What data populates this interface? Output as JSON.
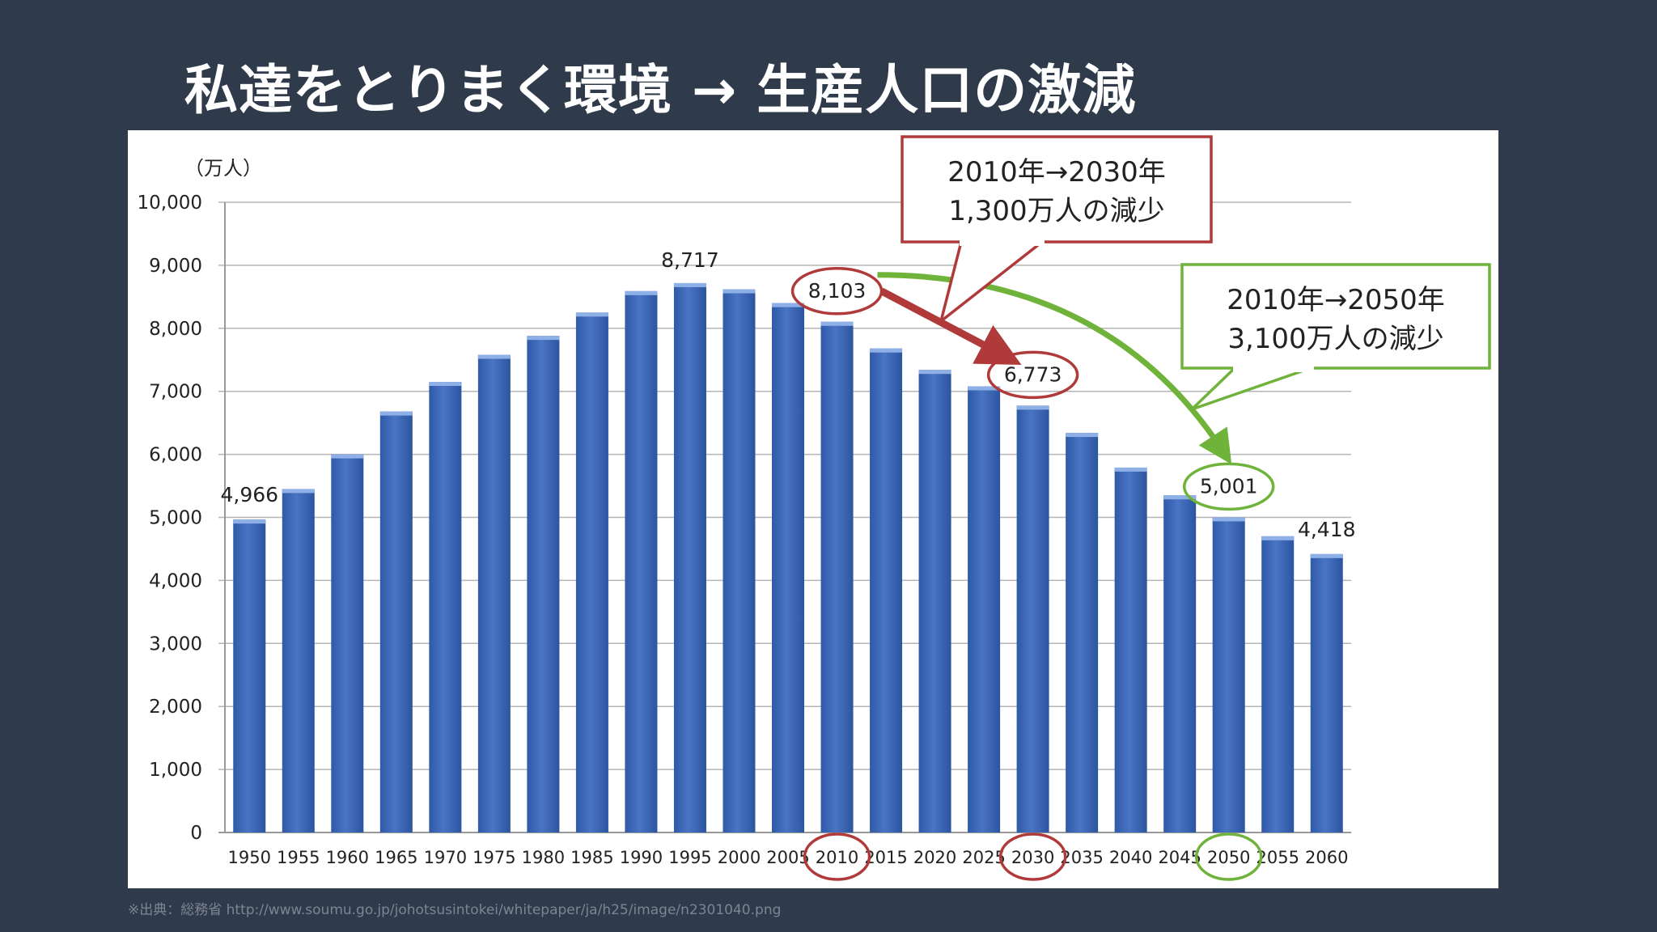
{
  "slide": {
    "title": "私達をとりまく環境 → 生産人口の激減",
    "source": "※出典：総務省 http://www.soumu.go.jp/johotsusintokei/whitepaper/ja/h25/image/n2301040.png"
  },
  "chart_data": {
    "type": "bar",
    "unit_label": "（万人）",
    "categories": [
      "1950",
      "1955",
      "1960",
      "1965",
      "1970",
      "1975",
      "1980",
      "1985",
      "1990",
      "1995",
      "2000",
      "2005",
      "2010",
      "2015",
      "2020",
      "2025",
      "2030",
      "2035",
      "2040",
      "2045",
      "2050",
      "2055",
      "2060"
    ],
    "values": [
      4966,
      5450,
      6000,
      6680,
      7150,
      7580,
      7880,
      8250,
      8590,
      8717,
      8620,
      8400,
      8103,
      7680,
      7340,
      7080,
      6773,
      6340,
      5790,
      5350,
      5001,
      4700,
      4418
    ],
    "ylim": [
      0,
      10000
    ],
    "yticks": [
      "0",
      "1,000",
      "2,000",
      "3,000",
      "4,000",
      "5,000",
      "6,000",
      "7,000",
      "8,000",
      "9,000",
      "10,000"
    ],
    "data_labels": [
      {
        "category": "1950",
        "text": "4,966"
      },
      {
        "category": "1995",
        "text": "8,717"
      },
      {
        "category": "2010",
        "text": "8,103"
      },
      {
        "category": "2030",
        "text": "6,773"
      },
      {
        "category": "2050",
        "text": "5,001"
      },
      {
        "category": "2060",
        "text": "4,418"
      }
    ],
    "annotations": [
      {
        "from": "2010",
        "to": "2030",
        "line1": "2010年→2030年",
        "line2": "1,300万人の減少",
        "color": "#b03a3a"
      },
      {
        "from": "2010",
        "to": "2050",
        "line1": "2010年→2050年",
        "line2": "3,100万人の減少",
        "color": "#6fb33a"
      }
    ],
    "bar_color": "#4a74c4",
    "grid": true
  }
}
